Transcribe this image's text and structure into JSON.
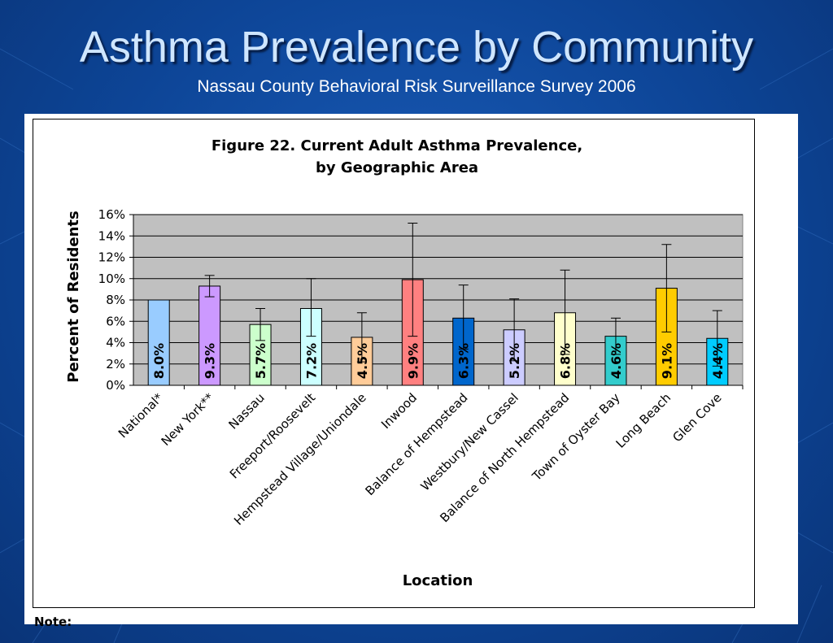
{
  "slide": {
    "title": "Asthma Prevalence by Community",
    "subtitle": "Nassau County Behavioral Risk Surveillance Survey 2006",
    "note": "Note:"
  },
  "colors": {
    "background": "#0d4597",
    "title": "#cfe6ff",
    "plot_area": "#c0c0c0"
  },
  "chart_data": {
    "type": "bar",
    "title": "Figure 22.  Current Adult Asthma Prevalence,",
    "subtitle": "by Geographic Area",
    "xlabel": "Location",
    "ylabel": "Percent of Residents",
    "ylim": [
      0,
      16
    ],
    "yticks": [
      "0%",
      "2%",
      "4%",
      "6%",
      "8%",
      "10%",
      "12%",
      "14%",
      "16%"
    ],
    "grid": true,
    "categories": [
      "National*",
      "New York**",
      "Nassau",
      "Freeport/Roosevelt",
      "Hempstead Village/Uniondale",
      "Inwood",
      "Balance of Hempstead",
      "Westbury/New Cassel",
      "Balance of North Hempstead",
      "Town of Oyster Bay",
      "Long Beach",
      "Glen Cove"
    ],
    "values": [
      8.0,
      9.3,
      5.7,
      7.2,
      4.5,
      9.9,
      6.3,
      5.2,
      6.8,
      4.6,
      9.1,
      4.4
    ],
    "labels": [
      "8.0%",
      "9.3%",
      "5.7%",
      "7.2%",
      "4.5%",
      "9.9%",
      "6.3%",
      "5.2%",
      "6.8%",
      "4.6%",
      "9.1%",
      "4.4%"
    ],
    "error_low": [
      null,
      8.3,
      4.2,
      4.6,
      2.2,
      4.6,
      3.4,
      2.3,
      2.9,
      2.9,
      5.0,
      1.8
    ],
    "error_high": [
      null,
      10.3,
      7.2,
      10.0,
      6.8,
      15.2,
      9.4,
      8.1,
      10.8,
      6.3,
      13.2,
      7.0
    ],
    "bar_colors": [
      "#99ccff",
      "#cc99ff",
      "#ccffcc",
      "#ccffff",
      "#ffcc99",
      "#ff8080",
      "#0066cc",
      "#ccccff",
      "#ffffcc",
      "#33cccc",
      "#ffcc00",
      "#00ccff"
    ]
  }
}
